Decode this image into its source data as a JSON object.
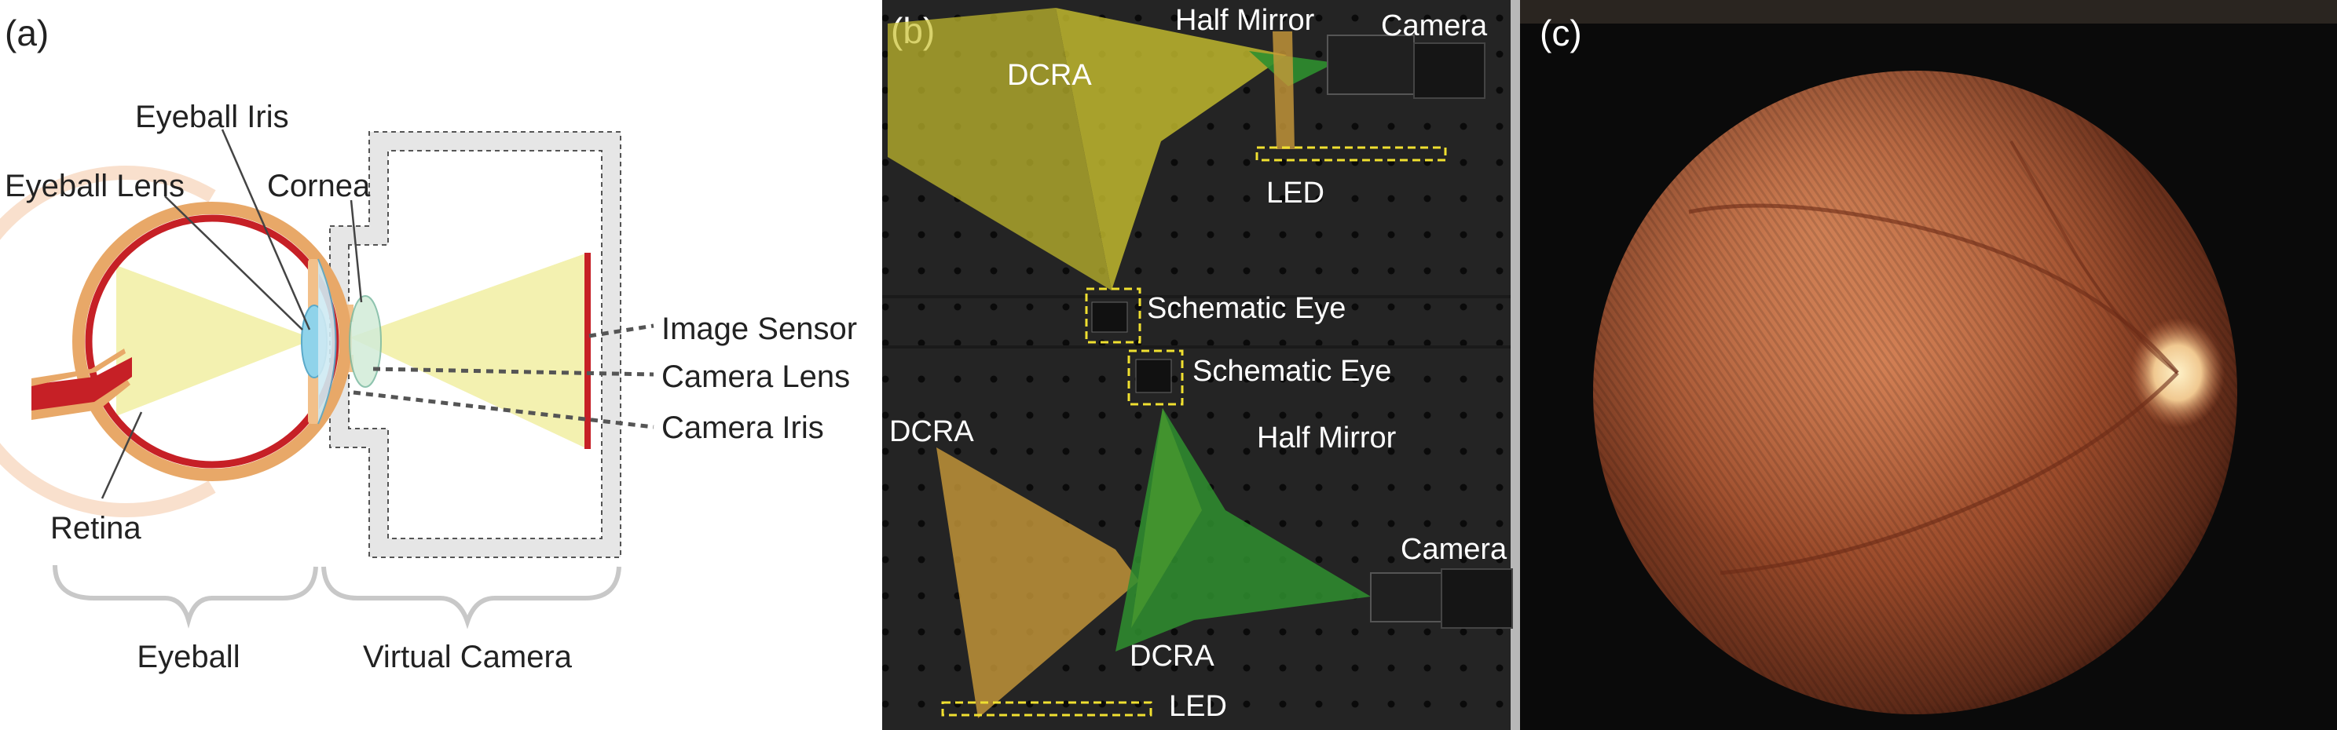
{
  "panels": {
    "a": {
      "tag": "(a)",
      "labels": {
        "eyeball_iris": "Eyeball Iris",
        "eyeball_lens": "Eyeball Lens",
        "cornea": "Cornea",
        "retina": "Retina",
        "image_sensor": "Image Sensor",
        "camera_lens": "Camera Lens",
        "camera_iris": "Camera Iris"
      },
      "groups": {
        "eyeball": "Eyeball",
        "virtual_camera": "Virtual Camera"
      }
    },
    "b": {
      "tag": "(b)",
      "labels": {
        "half_mirror_top": "Half Mirror",
        "camera_top": "Camera",
        "dcra_top": "DCRA",
        "led_top": "LED",
        "schematic_eye_1": "Schematic Eye",
        "schematic_eye_2": "Schematic Eye",
        "dcra_left": "DCRA",
        "half_mirror_bottom": "Half Mirror",
        "camera_bottom": "Camera",
        "dcra_bottom": "DCRA",
        "led_bottom": "LED"
      }
    },
    "c": {
      "tag": "(c)"
    }
  },
  "colors": {
    "retina_red": "#c62026",
    "sclera_orange": "#e8a868",
    "light_yellow": "#f3f1b0",
    "lens_blue": "#8fd3ea",
    "camera_gray": "#e6e6e6",
    "brace_gray": "#c8c8c8",
    "dcra_yellow": "#c9c12e",
    "dcra_orange": "#c99a3a",
    "dcra_green": "#2f8f2f",
    "led_box": "#f0e030"
  }
}
